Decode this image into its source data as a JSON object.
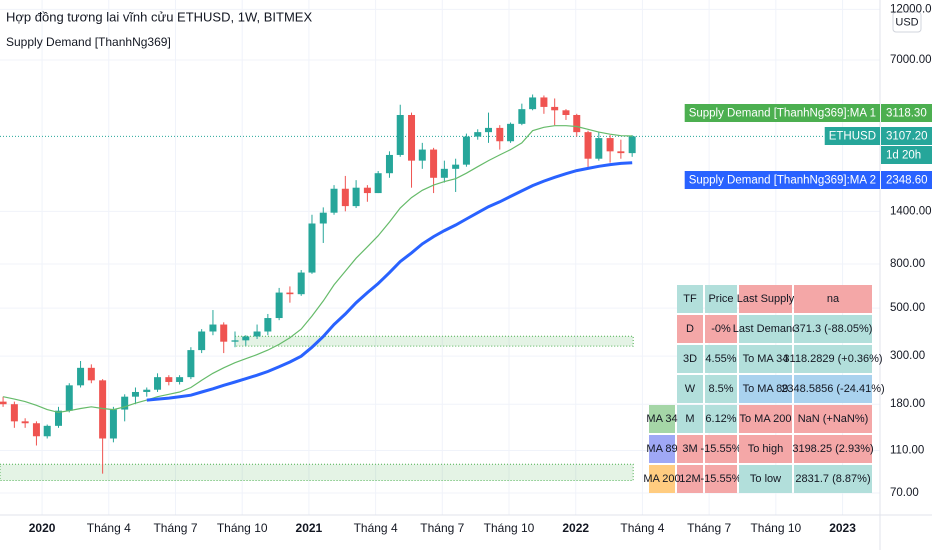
{
  "chart_data": {
    "type": "candlestick",
    "title": "Hợp đồng tương lai vĩnh cửu ETHUSD, 1W, BITMEX",
    "subtitle": "Supply Demand [ThanhNg369]",
    "currency_button": "USD",
    "log": true,
    "grid": true,
    "up_color": "#26a69a",
    "down_color": "#ef5350",
    "xlim": [
      0,
      171.5
    ],
    "xticks": [
      {
        "value": 8.2,
        "label": "2020"
      },
      {
        "value": 21.2,
        "label": "Tháng 4"
      },
      {
        "value": 34.2,
        "label": "Tháng 7"
      },
      {
        "value": 47.2,
        "label": "Tháng 10"
      },
      {
        "value": 60.2,
        "label": "2021"
      },
      {
        "value": 73.2,
        "label": "Tháng 4"
      },
      {
        "value": 86.2,
        "label": "Tháng 7"
      },
      {
        "value": 99.2,
        "label": "Tháng 10"
      },
      {
        "value": 112.2,
        "label": "2022"
      },
      {
        "value": 125.2,
        "label": "Tháng 4"
      },
      {
        "value": 138.2,
        "label": "Tháng 7"
      },
      {
        "value": 151.2,
        "label": "Tháng 10"
      },
      {
        "value": 164.2,
        "label": "2023"
      }
    ],
    "ylim": [
      55.4,
      13250
    ],
    "yticks": [
      {
        "value": 12000,
        "label": "12000.00"
      },
      {
        "value": 7000,
        "label": "7000.00"
      },
      {
        "value": 1400,
        "label": "1400.00"
      },
      {
        "value": 800,
        "label": "800.00"
      },
      {
        "value": 500,
        "label": "500.00"
      },
      {
        "value": 300,
        "label": "300.00"
      },
      {
        "value": 180,
        "label": "180.00"
      },
      {
        "value": 110,
        "label": "110.00"
      },
      {
        "value": 70,
        "label": "70.00"
      }
    ],
    "x": [
      0.6,
      2.8,
      4.9,
      7.1,
      9.2,
      11.4,
      13.5,
      15.7,
      17.8,
      20.0,
      22.1,
      24.3,
      26.4,
      28.6,
      30.7,
      32.9,
      35.0,
      37.2,
      39.3,
      41.5,
      43.6,
      45.8,
      47.9,
      50.1,
      52.2,
      54.4,
      56.5,
      58.7,
      60.8,
      63.0,
      65.1,
      67.3,
      69.4,
      71.6,
      73.7,
      75.9,
      78.0,
      80.2,
      82.3,
      84.5,
      86.6,
      88.8,
      90.9,
      93.1,
      95.2,
      97.4,
      99.5,
      101.7,
      103.8,
      106.0,
      108.1,
      110.3,
      112.4,
      114.6,
      116.7,
      118.9,
      121.0,
      123.2
    ],
    "open": [
      185,
      180,
      150,
      147,
      128,
      143,
      168,
      220,
      265,
      232,
      125,
      170,
      195,
      205,
      210,
      240,
      228,
      240,
      320,
      390,
      420,
      350,
      355,
      370,
      390,
      450,
      590,
      580,
      730,
      1230,
      1380,
      1780,
      1480,
      1800,
      1700,
      2100,
      2550,
      3900,
      2400,
      2700,
      2000,
      2200,
      2300,
      3100,
      3250,
      3400,
      2950,
      3550,
      4150,
      4700,
      4250,
      4100,
      3900,
      3250,
      2450,
      3050,
      2650,
      2600
    ],
    "high": [
      195,
      185,
      155,
      150,
      145,
      175,
      225,
      285,
      275,
      235,
      175,
      200,
      215,
      215,
      250,
      245,
      245,
      330,
      400,
      490,
      430,
      390,
      375,
      420,
      470,
      620,
      630,
      750,
      1350,
      1460,
      1850,
      2040,
      1950,
      1850,
      2150,
      2650,
      4350,
      4000,
      2900,
      2750,
      2400,
      2450,
      3200,
      3350,
      4000,
      3500,
      3600,
      4400,
      4850,
      4800,
      4650,
      4150,
      3950,
      3300,
      3250,
      3150,
      3000,
      3150
    ],
    "low": [
      175,
      140,
      140,
      116,
      125,
      140,
      165,
      215,
      225,
      86,
      120,
      150,
      180,
      195,
      205,
      220,
      222,
      235,
      310,
      375,
      310,
      330,
      335,
      360,
      375,
      440,
      530,
      570,
      720,
      1000,
      1350,
      1400,
      1450,
      1550,
      1700,
      2000,
      2500,
      1800,
      2200,
      1700,
      1900,
      1720,
      2250,
      3000,
      2900,
      2700,
      2900,
      3500,
      4100,
      3950,
      3500,
      3700,
      3100,
      2200,
      2400,
      2350,
      2450,
      2500
    ],
    "close": [
      180,
      150,
      147,
      128,
      143,
      168,
      220,
      265,
      232,
      125,
      170,
      195,
      205,
      210,
      240,
      228,
      240,
      320,
      390,
      420,
      350,
      355,
      370,
      390,
      450,
      590,
      580,
      730,
      1230,
      1380,
      1780,
      1480,
      1800,
      1700,
      2100,
      2550,
      3900,
      2400,
      2700,
      2000,
      2200,
      2300,
      3100,
      3250,
      3400,
      2950,
      3550,
      4150,
      4700,
      4250,
      4100,
      3900,
      3250,
      2450,
      3050,
      2650,
      2600,
      3107.2
    ],
    "series": [
      {
        "name": "MA 1",
        "color": "#66bb6a",
        "width": 1.2,
        "values": [
          195,
          190,
          185,
          178,
          170,
          165,
          168,
          172,
          175,
          172,
          170,
          175,
          182,
          188,
          195,
          200,
          205,
          215,
          232,
          250,
          265,
          280,
          292,
          305,
          320,
          340,
          365,
          400,
          460,
          540,
          640,
          740,
          850,
          960,
          1080,
          1250,
          1450,
          1620,
          1750,
          1850,
          1920,
          1980,
          2100,
          2250,
          2400,
          2550,
          2700,
          2900,
          3300,
          3420,
          3480,
          3480,
          3450,
          3350,
          3250,
          3180,
          3130,
          3118.3
        ]
      },
      {
        "name": "MA 2",
        "color": "#2962ff",
        "width": 3,
        "values": [
          null,
          null,
          null,
          null,
          null,
          null,
          null,
          null,
          null,
          null,
          null,
          null,
          null,
          188,
          190,
          192,
          195,
          198,
          205,
          212,
          220,
          228,
          236,
          245,
          255,
          268,
          282,
          300,
          330,
          370,
          420,
          470,
          530,
          590,
          650,
          730,
          820,
          900,
          990,
          1070,
          1140,
          1210,
          1290,
          1380,
          1470,
          1550,
          1640,
          1740,
          1840,
          1930,
          2010,
          2090,
          2160,
          2210,
          2260,
          2300,
          2330,
          2348.6
        ]
      }
    ],
    "zones": [
      {
        "low": 334,
        "high": 371,
        "start": 45.8,
        "end": 123.4
      },
      {
        "low": 80,
        "high": 95,
        "start": 0,
        "end": 123.4
      }
    ],
    "last_price": 3107.2,
    "price_labels": [
      {
        "name": "Supply Demand [ThanhNg369]:MA 1",
        "value": 3118.3,
        "label": "3118.30",
        "color": "#4caf50"
      },
      {
        "name": "ETHUSD",
        "value": 3107.2,
        "label": "3107.20",
        "color": "#26a69a",
        "countdown": "1d 20h"
      },
      {
        "name": "Supply Demand [ThanhNg369]:MA 2",
        "value": 2348.6,
        "label": "2348.60",
        "color": "#2962ff"
      }
    ],
    "table": {
      "rows": [
        {
          "cells": [
            "TF",
            "Price",
            "Last Supply",
            "na"
          ],
          "colors": [
            "#b2dfdb",
            "#b2dfdb",
            "#f4a7a7",
            "#f4a7a7"
          ]
        },
        {
          "cells": [
            "D",
            "-0%",
            "Last Demand",
            "371.3 (-88.05%)"
          ],
          "colors": [
            "#f4a7a7",
            "#f4a7a7",
            "#b2dfdb",
            "#b2dfdb"
          ]
        },
        {
          "cells": [
            "3D",
            "4.55%",
            "To MA 34",
            "3118.2829 (+0.36%)"
          ],
          "colors": [
            "#b2dfdb",
            "#b2dfdb",
            "#b2dfdb",
            "#b2dfdb"
          ]
        },
        {
          "cells": [
            "W",
            "8.5%",
            "To MA 89",
            "2348.5856 (-24.41%)"
          ],
          "colors": [
            "#b2dfdb",
            "#b2dfdb",
            "#a9d2ee",
            "#a9d2ee"
          ]
        },
        {
          "cells": [
            "M",
            "6.12%",
            "To MA 200",
            "NaN (+NaN%)"
          ],
          "colors": [
            "#b2dfdb",
            "#b2dfdb",
            "#f4a7a7",
            "#f4a7a7"
          ]
        },
        {
          "cells": [
            "3M",
            "-15.55%",
            "To high",
            "3198.25 (2.93%)"
          ],
          "colors": [
            "#f4a7a7",
            "#f4a7a7",
            "#f4a7a7",
            "#f4a7a7"
          ]
        },
        {
          "cells": [
            "12M",
            "-15.55%",
            "To low",
            "2831.7 (8.87%)"
          ],
          "colors": [
            "#f4a7a7",
            "#f4a7a7",
            "#b2dfdb",
            "#b2dfdb"
          ]
        }
      ],
      "ma_labels": [
        {
          "text": "MA 34",
          "color": "#a5d6a7"
        },
        {
          "text": "MA 89",
          "color": "#9fa8f5"
        },
        {
          "text": "MA 200",
          "color": "#ffcc80"
        }
      ]
    }
  }
}
